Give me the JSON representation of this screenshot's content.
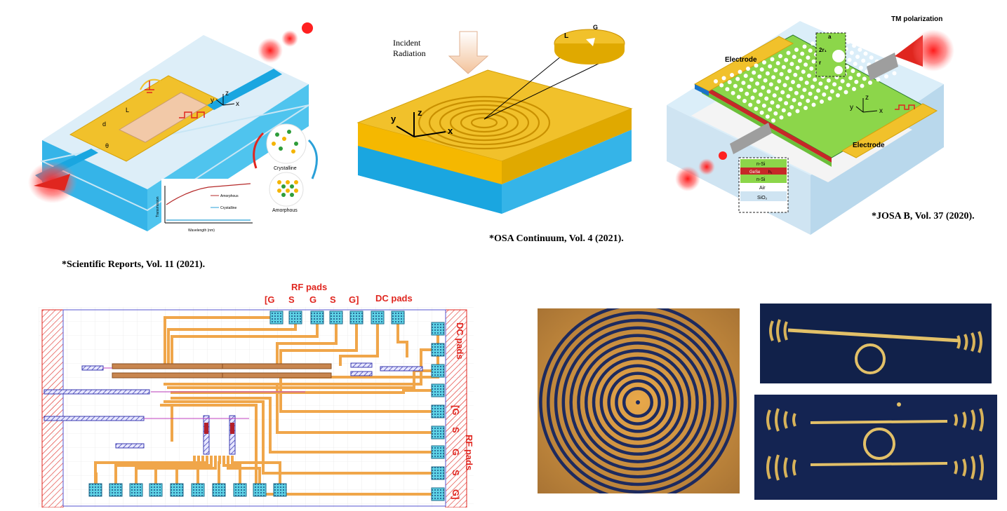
{
  "captions": {
    "sci_reports": "*Scientific Reports, Vol. 11 (2021).",
    "osa": "*OSA Continuum,  Vol. 4 (2021).",
    "josa": "*JOSA B, Vol. 37 (2020)."
  },
  "panel1": {
    "length_label": "L",
    "d_label": "d",
    "theta_label": "θ",
    "crystalline": "Crystalline",
    "amorphous": "Amorphous",
    "plot_ylabel": "Transmission",
    "plot_xlabel": "Wavelength (nm)",
    "legend_amorphous": "Amorphous",
    "legend_crystalline": "Crystalline",
    "axis_y": "y",
    "axis_z": "z",
    "axis_x": "x"
  },
  "panel2": {
    "incident": "Incident",
    "radiation": "Radiation",
    "inset_L": "L",
    "inset_G": "G",
    "axis_z": "z",
    "axis_y": "y",
    "axis_x": "x"
  },
  "panel3": {
    "tm": "TM polarization",
    "electrode_top": "Electrode",
    "electrode_bottom": "Electrode",
    "inset_a": "a",
    "inset_2r": "2r₁",
    "inset_r": "r",
    "layer1": "n-Si",
    "layer2": "GeSe",
    "layer2_h": "h₁",
    "layer3": "n-Si",
    "layer4": "Air",
    "layer5": "SiO₂",
    "axis_y": "y",
    "axis_z": "z",
    "axis_x": "x"
  },
  "panel4": {
    "rf_pads_top": "RF pads",
    "pad_labels": [
      "[G",
      "S",
      "G",
      "S",
      "G]"
    ],
    "dc_pads_top": "DC pads",
    "dc_pads_side": "DC pads",
    "rf_pads_side": "RF pads",
    "side_pad_labels": [
      "[G",
      "S",
      "G",
      "S",
      "G]"
    ]
  },
  "colors": {
    "gold": "#f4c300",
    "blue": "#1aa6e0",
    "red": "#e0261f",
    "trace": "#f0a64a",
    "pad": "#5fd3e6",
    "bus": "#c8864f"
  }
}
